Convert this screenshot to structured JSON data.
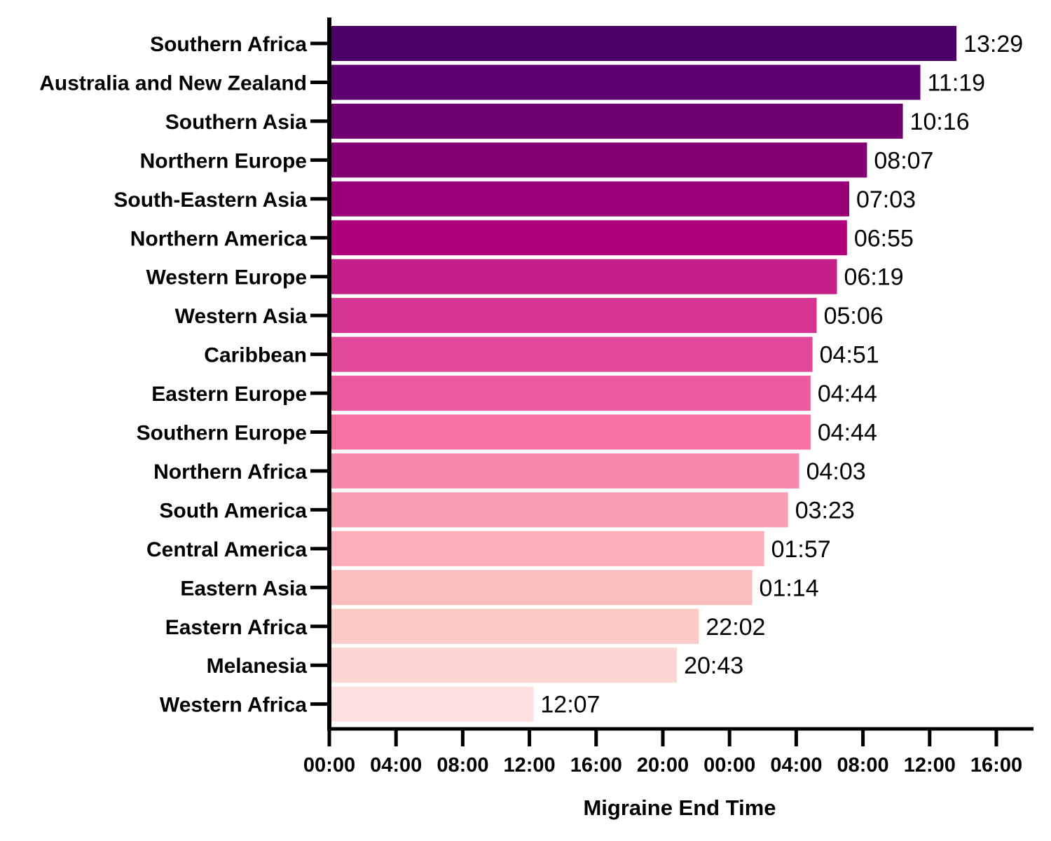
{
  "chart_data": {
    "type": "bar",
    "orientation": "horizontal",
    "xlabel": "Migraine End Time",
    "ylabel": "",
    "title": "",
    "x_unit": "hours since 00:00 of day 1",
    "xlim": [
      0,
      42
    ],
    "x_ticks": [
      0,
      4,
      8,
      12,
      16,
      20,
      24,
      28,
      32,
      36,
      40
    ],
    "x_tick_labels": [
      "00:00",
      "04:00",
      "08:00",
      "12:00",
      "16:00",
      "20:00",
      "00:00",
      "04:00",
      "08:00",
      "12:00",
      "16:00"
    ],
    "grid": false,
    "legend": "none",
    "categories": [
      "Southern Africa",
      "Australia and New Zealand",
      "Southern Asia",
      "Northern Europe",
      "South-Eastern Asia",
      "Northern America",
      "Western Europe",
      "Western Asia",
      "Caribbean",
      "Eastern Europe",
      "Southern Europe",
      "Northern Africa",
      "South America",
      "Central America",
      "Eastern Asia",
      "Eastern Africa",
      "Melanesia",
      "Western Africa"
    ],
    "values": [
      37.483,
      35.317,
      34.267,
      32.117,
      31.05,
      30.917,
      30.317,
      29.1,
      28.85,
      28.733,
      28.733,
      28.05,
      27.383,
      25.95,
      25.233,
      22.033,
      20.717,
      12.117
    ],
    "value_labels": [
      "13:29",
      "11:19",
      "10:16",
      "08:07",
      "07:03",
      "06:55",
      "06:19",
      "05:06",
      "04:51",
      "04:44",
      "04:44",
      "04:03",
      "03:23",
      "01:57",
      "01:14",
      "22:02",
      "20:43",
      "12:07"
    ],
    "colors": [
      "#4a0066",
      "#5e006e",
      "#6e0070",
      "#830073",
      "#990077",
      "#b1007b",
      "#c51f88",
      "#d63494",
      "#e3489a",
      "#ed5b9e",
      "#f571a3",
      "#f78aaa",
      "#f99fb2",
      "#faafb8",
      "#fbbdbd",
      "#fbcac6",
      "#fcd6d2",
      "#fde0df"
    ]
  }
}
